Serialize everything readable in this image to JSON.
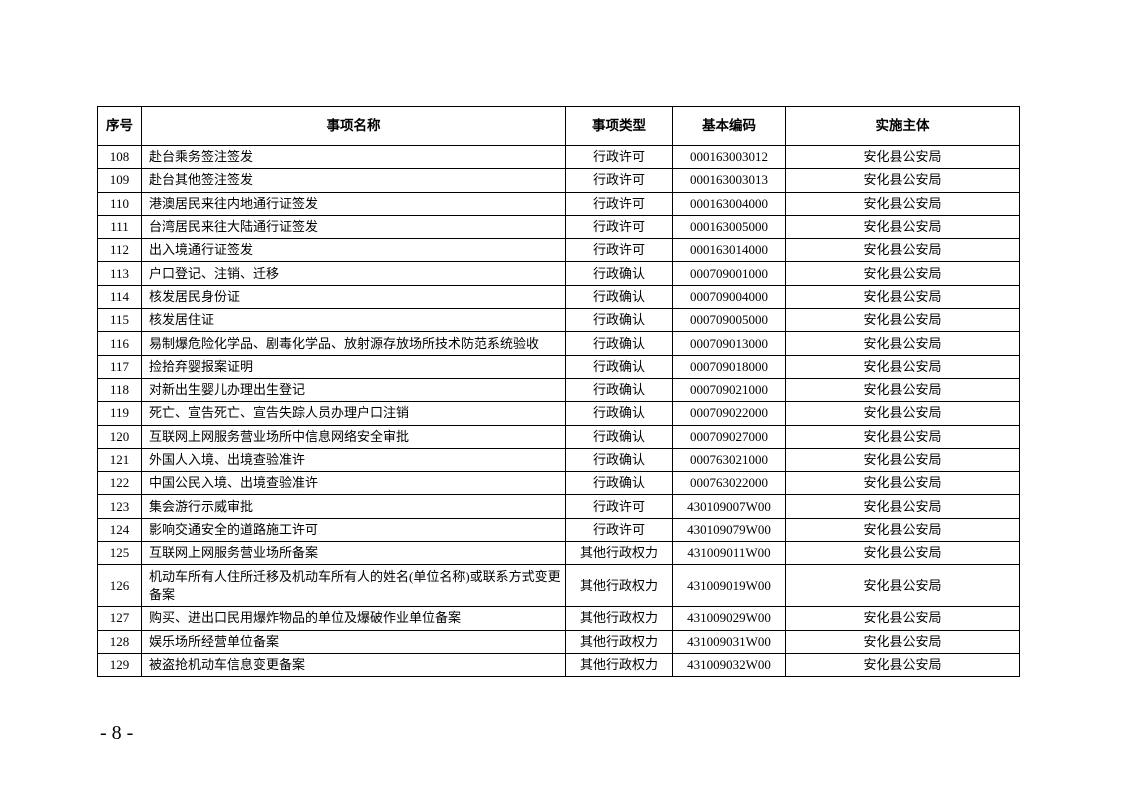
{
  "table": {
    "headers": [
      "序号",
      "事项名称",
      "事项类型",
      "基本编码",
      "实施主体"
    ],
    "rows": [
      [
        "108",
        "赴台乘务签注签发",
        "行政许可",
        "000163003012",
        "安化县公安局"
      ],
      [
        "109",
        "赴台其他签注签发",
        "行政许可",
        "000163003013",
        "安化县公安局"
      ],
      [
        "110",
        "港澳居民来往内地通行证签发",
        "行政许可",
        "000163004000",
        "安化县公安局"
      ],
      [
        "111",
        "台湾居民来往大陆通行证签发",
        "行政许可",
        "000163005000",
        "安化县公安局"
      ],
      [
        "112",
        "出入境通行证签发",
        "行政许可",
        "000163014000",
        "安化县公安局"
      ],
      [
        "113",
        "户口登记、注销、迁移",
        "行政确认",
        "000709001000",
        "安化县公安局"
      ],
      [
        "114",
        "核发居民身份证",
        "行政确认",
        "000709004000",
        "安化县公安局"
      ],
      [
        "115",
        "核发居住证",
        "行政确认",
        "000709005000",
        "安化县公安局"
      ],
      [
        "116",
        "易制爆危险化学品、剧毒化学品、放射源存放场所技术防范系统验收",
        "行政确认",
        "000709013000",
        "安化县公安局"
      ],
      [
        "117",
        "捡拾弃婴报案证明",
        "行政确认",
        "000709018000",
        "安化县公安局"
      ],
      [
        "118",
        "对新出生婴儿办理出生登记",
        "行政确认",
        "000709021000",
        "安化县公安局"
      ],
      [
        "119",
        "死亡、宣告死亡、宣告失踪人员办理户口注销",
        "行政确认",
        "000709022000",
        "安化县公安局"
      ],
      [
        "120",
        "互联网上网服务营业场所中信息网络安全审批",
        "行政确认",
        "000709027000",
        "安化县公安局"
      ],
      [
        "121",
        "外国人入境、出境查验准许",
        "行政确认",
        "000763021000",
        "安化县公安局"
      ],
      [
        "122",
        "中国公民入境、出境查验准许",
        "行政确认",
        "000763022000",
        "安化县公安局"
      ],
      [
        "123",
        "集会游行示威审批",
        "行政许可",
        "430109007W00",
        "安化县公安局"
      ],
      [
        "124",
        "影响交通安全的道路施工许可",
        "行政许可",
        "430109079W00",
        "安化县公安局"
      ],
      [
        "125",
        "互联网上网服务营业场所备案",
        "其他行政权力",
        "431009011W00",
        "安化县公安局"
      ],
      [
        "126",
        "机动车所有人住所迁移及机动车所有人的姓名(单位名称)或联系方式变更备案",
        "其他行政权力",
        "431009019W00",
        "安化县公安局"
      ],
      [
        "127",
        "购买、进出口民用爆炸物品的单位及爆破作业单位备案",
        "其他行政权力",
        "431009029W00",
        "安化县公安局"
      ],
      [
        "128",
        "娱乐场所经营单位备案",
        "其他行政权力",
        "431009031W00",
        "安化县公安局"
      ],
      [
        "129",
        "被盗抢机动车信息变更备案",
        "其他行政权力",
        "431009032W00",
        "安化县公安局"
      ]
    ]
  },
  "page_number": "- 8 -"
}
